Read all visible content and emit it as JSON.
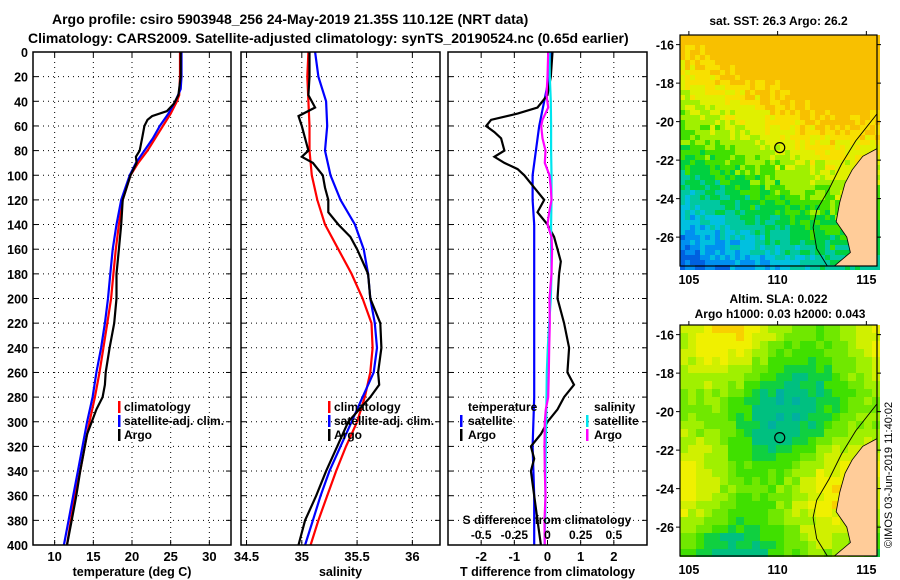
{
  "header": {
    "line1": "Argo profile: csiro 5903948_256 24-May-2019 21.35S 110.12E (NRT data)",
    "line2": "Climatology: CARS2009. Satellite-adjusted climatology: synTS_20190524.nc (0.65d earlier)"
  },
  "colors": {
    "climatology": "#ff0000",
    "satellite": "#0000ff",
    "argo": "#000000",
    "sal_satellite": "#00e5ee",
    "sal_argo": "#ff00ff",
    "land": "#ffcc99"
  },
  "chart_data": [
    {
      "type": "line",
      "id": "temperature",
      "xlabel": "temperature (deg C)",
      "ylabel": "",
      "xlim": [
        7.2,
        32.8
      ],
      "ylim": [
        0,
        400
      ],
      "y_inverted": true,
      "xticks": [
        10,
        15,
        20,
        25,
        30
      ],
      "xtick_labels": [
        "10",
        "15",
        "20",
        "25",
        "30"
      ],
      "yticks": [
        0,
        20,
        40,
        60,
        80,
        100,
        120,
        140,
        160,
        180,
        200,
        220,
        240,
        260,
        280,
        300,
        320,
        340,
        360,
        380,
        400
      ],
      "grid": true,
      "legend": [
        "climatology",
        "satellite-adj. clim.",
        "Argo"
      ],
      "legend_placement": "lower-right",
      "series": [
        {
          "name": "climatology",
          "color": "#ff0000",
          "depth": [
            0,
            20,
            35,
            40,
            50,
            60,
            70,
            80,
            90,
            100,
            120,
            140,
            160,
            180,
            200,
            220,
            240,
            260,
            280,
            300,
            320,
            340,
            360,
            380,
            400
          ],
          "values": [
            26.2,
            26.2,
            26.1,
            25.8,
            25.0,
            24.0,
            23.0,
            22.0,
            20.8,
            19.8,
            18.8,
            18.3,
            17.9,
            17.6,
            17.3,
            16.8,
            16.3,
            15.8,
            15.2,
            14.5,
            13.9,
            13.3,
            12.6,
            12.1,
            11.6
          ]
        },
        {
          "name": "satellite-adj. clim.",
          "color": "#0000ff",
          "depth": [
            0,
            20,
            30,
            40,
            50,
            60,
            70,
            80,
            90,
            100,
            120,
            140,
            160,
            180,
            200,
            220,
            240,
            260,
            280,
            300,
            320,
            340,
            360,
            380,
            400
          ],
          "values": [
            26.4,
            26.4,
            26.3,
            25.6,
            24.7,
            23.6,
            22.7,
            21.6,
            20.5,
            19.7,
            18.6,
            18.0,
            17.5,
            17.2,
            16.9,
            16.5,
            16.0,
            15.4,
            14.9,
            14.2,
            13.6,
            13.0,
            12.4,
            11.8,
            11.2
          ]
        },
        {
          "name": "Argo",
          "color": "#000000",
          "depth": [
            0,
            20,
            35,
            42,
            48,
            52,
            55,
            60,
            70,
            80,
            85,
            90,
            100,
            120,
            140,
            160,
            180,
            200,
            220,
            240,
            260,
            270,
            280,
            290,
            300,
            310,
            320,
            340,
            360,
            380,
            400
          ],
          "values": [
            26.3,
            26.3,
            26.0,
            25.4,
            24.5,
            22.6,
            22.0,
            21.6,
            21.3,
            21.0,
            20.5,
            20.6,
            19.8,
            18.8,
            18.6,
            18.3,
            18.0,
            18.0,
            17.7,
            17.1,
            16.6,
            16.5,
            16.2,
            15.4,
            14.8,
            14.2,
            13.9,
            13.3,
            12.8,
            12.2,
            11.6
          ]
        }
      ]
    },
    {
      "type": "line",
      "id": "salinity",
      "xlabel": "salinity",
      "xlim": [
        34.45,
        36.25
      ],
      "ylim": [
        0,
        400
      ],
      "y_inverted": true,
      "xticks": [
        34.5,
        35,
        35.5,
        36
      ],
      "xtick_labels": [
        "34.5",
        "35",
        "35.5",
        "36"
      ],
      "grid": true,
      "legend": [
        "climatology",
        "satellite-adj. clim.",
        "Argo"
      ],
      "legend_placement": "lower-right",
      "series": [
        {
          "name": "climatology",
          "color": "#ff0000",
          "depth": [
            0,
            20,
            40,
            60,
            80,
            100,
            120,
            140,
            160,
            180,
            200,
            220,
            240,
            260,
            280,
            300,
            320,
            340,
            360,
            380,
            400
          ],
          "values": [
            35.06,
            35.05,
            35.06,
            35.07,
            35.07,
            35.09,
            35.14,
            35.21,
            35.33,
            35.45,
            35.55,
            35.63,
            35.64,
            35.62,
            35.57,
            35.5,
            35.4,
            35.31,
            35.23,
            35.15,
            35.08
          ]
        },
        {
          "name": "satellite-adj. clim.",
          "color": "#0000ff",
          "depth": [
            0,
            20,
            40,
            60,
            80,
            100,
            120,
            140,
            160,
            180,
            200,
            220,
            240,
            260,
            280,
            300,
            320,
            340,
            360,
            380,
            400
          ],
          "values": [
            35.12,
            35.15,
            35.22,
            35.23,
            35.21,
            35.26,
            35.35,
            35.48,
            35.56,
            35.6,
            35.62,
            35.66,
            35.68,
            35.65,
            35.55,
            35.45,
            35.35,
            35.25,
            35.17,
            35.1,
            35.03
          ]
        },
        {
          "name": "Argo",
          "color": "#000000",
          "depth": [
            0,
            20,
            35,
            45,
            52,
            60,
            70,
            80,
            85,
            90,
            100,
            110,
            120,
            130,
            140,
            150,
            160,
            170,
            180,
            200,
            220,
            240,
            260,
            270,
            280,
            290,
            300,
            320,
            340,
            360,
            380,
            400
          ],
          "values": [
            35.07,
            35.07,
            35.06,
            35.12,
            34.97,
            35.0,
            35.03,
            35.06,
            35.0,
            35.1,
            35.19,
            35.21,
            35.24,
            35.24,
            35.33,
            35.44,
            35.5,
            35.55,
            35.6,
            35.62,
            35.71,
            35.72,
            35.69,
            35.7,
            35.62,
            35.52,
            35.42,
            35.32,
            35.22,
            35.13,
            35.03,
            34.97
          ]
        }
      ]
    },
    {
      "type": "line",
      "id": "difference",
      "xlabel": "T difference from climatology",
      "xlabel_secondary": "S difference from climatology",
      "xlim": [
        -3,
        3
      ],
      "ylim": [
        0,
        400
      ],
      "y_inverted": true,
      "xticks": [
        -2,
        -1,
        0,
        1,
        2
      ],
      "xtick_labels": [
        "-2",
        "-1",
        "0",
        "1",
        "2"
      ],
      "secondary_xticks": [
        -0.5,
        -0.25,
        0,
        0.25,
        0.5
      ],
      "secondary_xtick_labels": [
        "-0.5",
        "-0.25",
        "0",
        "0.25",
        "0.5"
      ],
      "grid": true,
      "legend_temperature_title": "temperature",
      "legend_salinity_title": "salinity",
      "legend": [
        "satellite",
        "Argo",
        "satellite",
        "Argo"
      ],
      "legend_placement": "lower-center",
      "series": [
        {
          "name": "temperature satellite",
          "color": "#0000ff",
          "depth": [
            0,
            20,
            40,
            60,
            80,
            100,
            120,
            140,
            160,
            200,
            240,
            280,
            320,
            360,
            400
          ],
          "values": [
            0.1,
            0.05,
            -0.1,
            -0.25,
            -0.35,
            -0.45,
            -0.45,
            -0.4,
            -0.4,
            -0.4,
            -0.4,
            -0.4,
            -0.45,
            -0.4,
            -0.4
          ]
        },
        {
          "name": "temperature Argo",
          "color": "#000000",
          "depth": [
            0,
            20,
            35,
            45,
            50,
            55,
            60,
            65,
            70,
            80,
            85,
            90,
            95,
            100,
            110,
            120,
            130,
            140,
            150,
            160,
            170,
            180,
            200,
            220,
            240,
            260,
            270,
            280,
            290,
            300,
            310,
            320,
            330,
            340,
            360,
            380,
            400
          ],
          "values": [
            0.15,
            0.1,
            0.0,
            -0.3,
            -0.9,
            -1.7,
            -1.85,
            -1.6,
            -1.4,
            -1.3,
            -1.6,
            -1.3,
            -0.9,
            -0.7,
            -0.4,
            -0.1,
            -0.3,
            0.0,
            0.2,
            0.3,
            0.4,
            0.35,
            0.3,
            0.5,
            0.65,
            0.6,
            0.8,
            0.5,
            0.3,
            0.0,
            -0.2,
            -0.5,
            -0.4,
            -0.5,
            -0.4,
            -0.3,
            -0.2
          ]
        },
        {
          "name": "salinity satellite",
          "color": "#00e5ee",
          "depth": [
            0,
            20,
            40,
            60,
            80,
            100,
            120,
            140,
            160,
            180,
            200,
            220,
            240,
            260,
            280,
            300,
            320,
            340,
            360,
            380,
            400
          ],
          "values": [
            0.06,
            0.07,
            0.1,
            0.11,
            0.11,
            0.12,
            0.12,
            0.11,
            0.11,
            0.12,
            0.1,
            0.05,
            0.01,
            -0.02,
            -0.03,
            -0.04,
            -0.05,
            -0.06,
            -0.06,
            -0.07,
            -0.09
          ]
        },
        {
          "name": "salinity Argo",
          "color": "#ff00ff",
          "depth": [
            0,
            20,
            35,
            45,
            55,
            60,
            70,
            80,
            90,
            100,
            110,
            120,
            130,
            140,
            150,
            160,
            170,
            180,
            200,
            220,
            240,
            260,
            280,
            290,
            300,
            320,
            340,
            360,
            380,
            400
          ],
          "values": [
            0.02,
            0.0,
            -0.03,
            0.02,
            -0.15,
            -0.19,
            -0.15,
            -0.06,
            -0.08,
            0.06,
            0.1,
            0.12,
            0.05,
            0.0,
            0.12,
            0.14,
            0.13,
            0.12,
            0.06,
            0.07,
            0.05,
            0.04,
            0.02,
            -0.05,
            -0.08,
            -0.09,
            -0.08,
            -0.06,
            -0.09,
            -0.08
          ]
        }
      ]
    },
    {
      "type": "heatmap",
      "id": "sst-map",
      "title": "sat. SST: 26.3 Argo: 26.2",
      "xlim": [
        104.5,
        115.6
      ],
      "ylim": [
        -27.5,
        -15.5
      ],
      "xticks": [
        105,
        110,
        115
      ],
      "xtick_labels": [
        "105",
        "110",
        "115"
      ],
      "yticks": [
        -16,
        -18,
        -20,
        -22,
        -24,
        -26
      ],
      "ytick_labels": [
        "-16",
        "-18",
        "-20",
        "-22",
        "-24",
        "-26"
      ],
      "marker": {
        "lon": 110.12,
        "lat": -21.35
      },
      "sat_sst": 26.3,
      "argo_sst": 26.2
    },
    {
      "type": "heatmap",
      "id": "sla-map",
      "title": "Altim. SLA: 0.022",
      "subtitle": "Argo h1000: 0.03 h2000: 0.043",
      "xlim": [
        104.5,
        115.6
      ],
      "ylim": [
        -27.5,
        -15.5
      ],
      "xticks": [
        105,
        110,
        115
      ],
      "xtick_labels": [
        "105",
        "110",
        "115"
      ],
      "yticks": [
        -16,
        -18,
        -20,
        -22,
        -24,
        -26
      ],
      "ytick_labels": [
        "-16",
        "-18",
        "-20",
        "-22",
        "-24",
        "-26"
      ],
      "marker": {
        "lon": 110.12,
        "lat": -21.35
      },
      "altim_sla": 0.022,
      "argo_h1000": 0.03,
      "argo_h2000": 0.043
    }
  ],
  "footer": {
    "stamp": "©IMOS 03-Jun-2019 11:40:02"
  }
}
